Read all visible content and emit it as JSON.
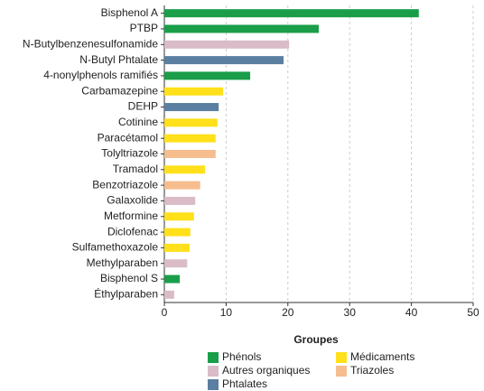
{
  "chart_data": {
    "type": "barh",
    "categories": [
      "Bisphenol A",
      "PTBP",
      "N-Butylbenzenesulfonamide",
      "N-Butyl Phtalate",
      "4-nonylphenols ramifiés",
      "Carbamazepine",
      "DEHP",
      "Cotinine",
      "Paracétamol",
      "Tolyltriazole",
      "Tramadol",
      "Benzotriazole",
      "Galaxolide",
      "Metformine",
      "Diclofenac",
      "Sulfamethoxazole",
      "Methylparaben",
      "Bisphenol S",
      "Éthylparaben"
    ],
    "values": [
      41.2,
      25.0,
      20.2,
      19.3,
      13.9,
      9.5,
      8.8,
      8.6,
      8.3,
      8.3,
      6.6,
      5.8,
      5.0,
      4.8,
      4.2,
      4.1,
      3.7,
      2.5,
      1.6
    ],
    "colors": [
      "#1a9e4a",
      "#1a9e4a",
      "#d9bcc8",
      "#5b7fa0",
      "#1a9e4a",
      "#ffe01a",
      "#5b7fa0",
      "#ffe01a",
      "#ffe01a",
      "#f6bd8e",
      "#ffe01a",
      "#f6bd8e",
      "#d9bcc8",
      "#ffe01a",
      "#ffe01a",
      "#ffe01a",
      "#d9bcc8",
      "#1a9e4a",
      "#d9bcc8"
    ],
    "xlim": [
      0,
      50
    ],
    "xticks": [
      0,
      10,
      20,
      30,
      40,
      50
    ],
    "grid": true,
    "legend_title": "Groupes",
    "legend": [
      {
        "name": "Phénols",
        "color": "#1a9e4a"
      },
      {
        "name": "Autres organiques",
        "color": "#d9bcc8"
      },
      {
        "name": "Phtalates",
        "color": "#5b7fa0"
      },
      {
        "name": "Médicaments",
        "color": "#ffe01a"
      },
      {
        "name": "Triazoles",
        "color": "#f6bd8e"
      }
    ]
  }
}
